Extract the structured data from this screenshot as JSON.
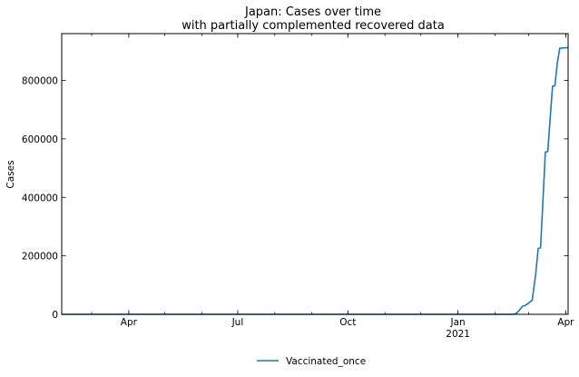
{
  "chart_data": {
    "type": "line",
    "title": "Japan: Cases over time",
    "subtitle": "with partially complemented recovered data",
    "xlabel": "",
    "ylabel": "Cases",
    "x_tick_labels": [
      {
        "date": "2020-04-01",
        "label": "Apr",
        "sublabel": ""
      },
      {
        "date": "2020-07-01",
        "label": "Jul",
        "sublabel": ""
      },
      {
        "date": "2020-10-01",
        "label": "Oct",
        "sublabel": ""
      },
      {
        "date": "2021-01-01",
        "label": "Jan",
        "sublabel": "2021"
      },
      {
        "date": "2021-04-01",
        "label": "Apr",
        "sublabel": ""
      }
    ],
    "y_ticks": [
      0,
      200000,
      400000,
      600000,
      800000
    ],
    "y_tick_labels": [
      "0",
      "200000",
      "400000",
      "600000",
      "800000"
    ],
    "xlim": [
      "2020-02-05",
      "2021-04-03"
    ],
    "ylim": [
      0,
      960000
    ],
    "grid": false,
    "legend_placement": "bottom-center",
    "series": [
      {
        "name": "Vaccinated_once",
        "color": "#1f77b4",
        "points": [
          [
            "2020-02-05",
            0
          ],
          [
            "2021-02-16",
            0
          ],
          [
            "2021-02-18",
            2000
          ],
          [
            "2021-02-20",
            8000
          ],
          [
            "2021-02-22",
            18000
          ],
          [
            "2021-02-24",
            28000
          ],
          [
            "2021-02-26",
            30000
          ],
          [
            "2021-02-28",
            35000
          ],
          [
            "2021-03-02",
            42000
          ],
          [
            "2021-03-04",
            48000
          ],
          [
            "2021-03-07",
            140000
          ],
          [
            "2021-03-09",
            225000
          ],
          [
            "2021-03-11",
            228000
          ],
          [
            "2021-03-13",
            390000
          ],
          [
            "2021-03-15",
            555000
          ],
          [
            "2021-03-17",
            557000
          ],
          [
            "2021-03-19",
            670000
          ],
          [
            "2021-03-21",
            780000
          ],
          [
            "2021-03-23",
            782000
          ],
          [
            "2021-03-25",
            860000
          ],
          [
            "2021-03-27",
            910000
          ],
          [
            "2021-04-03",
            912000
          ]
        ]
      }
    ]
  }
}
